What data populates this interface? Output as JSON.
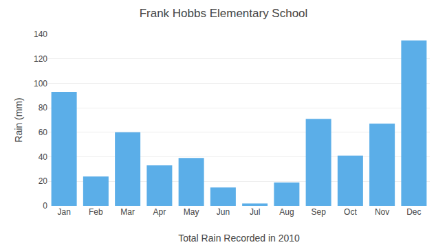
{
  "chart_data": {
    "type": "bar",
    "title": "Frank Hobbs Elementary School",
    "xlabel": "Total Rain Recorded in 2010",
    "ylabel": "Rain (mm)",
    "categories": [
      "Jan",
      "Feb",
      "Mar",
      "Apr",
      "May",
      "Jun",
      "Jul",
      "Aug",
      "Sep",
      "Oct",
      "Nov",
      "Dec"
    ],
    "values": [
      93,
      24,
      60,
      33,
      39,
      15,
      2,
      19,
      71,
      41,
      67,
      135
    ],
    "color": "#5BAEE8",
    "ylim": [
      0,
      140
    ],
    "yticks": [
      0,
      20,
      40,
      60,
      80,
      100,
      120,
      140
    ],
    "grid": true
  }
}
